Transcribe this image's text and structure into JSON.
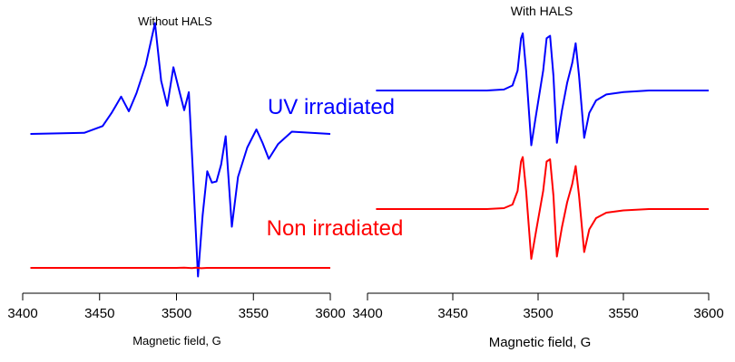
{
  "chart_data": [
    {
      "type": "line",
      "title": "Without HALS",
      "xlabel": "Magnetic field, G",
      "ylabel": "",
      "xlim": [
        3400,
        3600
      ],
      "xticks": [
        3400,
        3450,
        3500,
        3550,
        3600
      ],
      "grid": false,
      "y_scale": "arbitrary units (no y axis shown)",
      "series": [
        {
          "name": "UV irradiated",
          "color": "#0000ff",
          "x": [
            3405,
            3440,
            3452,
            3458,
            3464,
            3469,
            3474,
            3480,
            3486,
            3490,
            3494,
            3498,
            3502,
            3505,
            3508,
            3511,
            3514,
            3517,
            3520,
            3523,
            3526,
            3529,
            3532,
            3536,
            3540,
            3546,
            3552,
            3556,
            3560,
            3566,
            3575,
            3600
          ],
          "y": [
            0,
            0.01,
            0.07,
            0.19,
            0.33,
            0.2,
            0.36,
            0.61,
            0.98,
            0.47,
            0.25,
            0.59,
            0.37,
            0.21,
            0.37,
            -0.42,
            -1.26,
            -0.72,
            -0.33,
            -0.43,
            -0.42,
            -0.27,
            -0.02,
            -0.82,
            -0.38,
            -0.12,
            0.04,
            -0.08,
            -0.22,
            -0.09,
            0.02,
            0
          ]
        },
        {
          "name": "Non irradiated",
          "color": "#ff0000",
          "x": [
            3405,
            3450,
            3500,
            3505,
            3510,
            3513,
            3516,
            3520,
            3550,
            3600
          ],
          "y": [
            0,
            0,
            0,
            0.01,
            -0.01,
            0.01,
            -0.02,
            0,
            0,
            0
          ]
        }
      ],
      "annotations": [
        {
          "text": "UV irradiated",
          "color": "#0000ff"
        },
        {
          "text": "Non irradiated",
          "color": "#ff0000"
        }
      ]
    },
    {
      "type": "line",
      "title": "With HALS",
      "xlabel": "Magnetic field, G",
      "ylabel": "",
      "xlim": [
        3400,
        3600
      ],
      "xticks": [
        3400,
        3450,
        3500,
        3550,
        3600
      ],
      "grid": false,
      "y_scale": "arbitrary units (no y axis shown)",
      "series": [
        {
          "name": "UV irradiated",
          "color": "#0000ff",
          "x": [
            3405,
            3470,
            3480,
            3485,
            3488,
            3490,
            3491,
            3493,
            3496,
            3499,
            3503,
            3505,
            3507,
            3509,
            3511,
            3514,
            3517,
            3520,
            3522,
            3524,
            3527,
            3530,
            3534,
            3540,
            3550,
            3565,
            3600
          ],
          "y": [
            0,
            0,
            0.02,
            0.1,
            0.4,
            1.05,
            1.15,
            0.4,
            -1.1,
            -0.45,
            0.4,
            1.05,
            1.1,
            0.3,
            -1.05,
            -0.4,
            0.15,
            0.55,
            0.95,
            0.3,
            -0.95,
            -0.45,
            -0.2,
            -0.08,
            -0.03,
            0,
            0
          ]
        },
        {
          "name": "Non irradiated",
          "color": "#ff0000",
          "x": [
            3405,
            3470,
            3480,
            3485,
            3488,
            3490,
            3491,
            3493,
            3496,
            3499,
            3503,
            3505,
            3507,
            3509,
            3511,
            3514,
            3517,
            3520,
            3522,
            3524,
            3527,
            3530,
            3534,
            3540,
            3550,
            3565,
            3600
          ],
          "y": [
            0,
            0,
            0.02,
            0.1,
            0.4,
            1.05,
            1.15,
            0.4,
            -1.1,
            -0.45,
            0.4,
            1.05,
            1.1,
            0.3,
            -1.05,
            -0.4,
            0.15,
            0.55,
            0.95,
            0.3,
            -0.95,
            -0.45,
            -0.2,
            -0.08,
            -0.03,
            0,
            0
          ]
        }
      ]
    }
  ]
}
